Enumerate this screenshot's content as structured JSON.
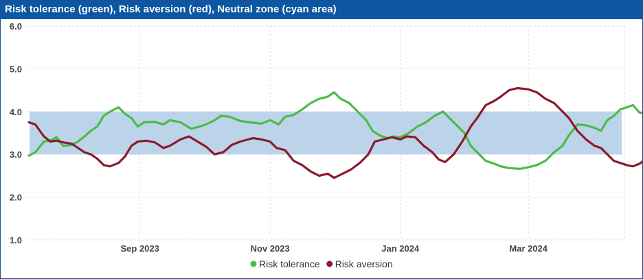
{
  "chart_data": {
    "type": "line",
    "title": "Risk tolerance (green), Risk aversion (red), Neutral zone (cyan area)",
    "xlabel": "",
    "ylabel": "",
    "ylim": [
      1.0,
      6.0
    ],
    "yticks": [
      "1.0",
      "2.0",
      "3.0",
      "4.0",
      "5.0",
      "6.0"
    ],
    "xlim": [
      "2023-07-10",
      "2024-04-15"
    ],
    "xticks": [
      {
        "date": "2023-09-01",
        "label": "Sep 2023"
      },
      {
        "date": "2023-11-01",
        "label": "Nov 2023"
      },
      {
        "date": "2024-01-01",
        "label": "Jan 2024"
      },
      {
        "date": "2024-03-01",
        "label": "Mar 2024"
      }
    ],
    "grid": true,
    "legend": "bottom-center",
    "band": {
      "low": 3.0,
      "high": 4.0,
      "color": "#bcd4ea"
    },
    "series": [
      {
        "name": "Risk tolerance",
        "color": "#4cbb47",
        "points": [
          [
            "2023-07-11",
            2.97
          ],
          [
            "2023-07-14",
            3.05
          ],
          [
            "2023-07-18",
            3.3
          ],
          [
            "2023-07-21",
            3.32
          ],
          [
            "2023-07-24",
            3.4
          ],
          [
            "2023-07-27",
            3.2
          ],
          [
            "2023-07-31",
            3.22
          ],
          [
            "2023-08-03",
            3.3
          ],
          [
            "2023-08-06",
            3.42
          ],
          [
            "2023-08-09",
            3.55
          ],
          [
            "2023-08-12",
            3.65
          ],
          [
            "2023-08-15",
            3.9
          ],
          [
            "2023-08-18",
            4.0
          ],
          [
            "2023-08-22",
            4.1
          ],
          [
            "2023-08-25",
            3.95
          ],
          [
            "2023-08-28",
            3.85
          ],
          [
            "2023-08-31",
            3.65
          ],
          [
            "2023-09-03",
            3.75
          ],
          [
            "2023-09-08",
            3.76
          ],
          [
            "2023-09-12",
            3.7
          ],
          [
            "2023-09-15",
            3.8
          ],
          [
            "2023-09-20",
            3.75
          ],
          [
            "2023-09-25",
            3.6
          ],
          [
            "2023-09-29",
            3.65
          ],
          [
            "2023-10-02",
            3.7
          ],
          [
            "2023-10-06",
            3.8
          ],
          [
            "2023-10-09",
            3.9
          ],
          [
            "2023-10-13",
            3.88
          ],
          [
            "2023-10-18",
            3.78
          ],
          [
            "2023-10-24",
            3.74
          ],
          [
            "2023-10-28",
            3.72
          ],
          [
            "2023-11-01",
            3.8
          ],
          [
            "2023-11-05",
            3.7
          ],
          [
            "2023-11-08",
            3.88
          ],
          [
            "2023-11-12",
            3.92
          ],
          [
            "2023-11-16",
            4.05
          ],
          [
            "2023-11-20",
            4.2
          ],
          [
            "2023-11-24",
            4.3
          ],
          [
            "2023-11-28",
            4.35
          ],
          [
            "2023-12-01",
            4.45
          ],
          [
            "2023-12-04",
            4.3
          ],
          [
            "2023-12-08",
            4.2
          ],
          [
            "2023-12-12",
            4.0
          ],
          [
            "2023-12-16",
            3.8
          ],
          [
            "2023-12-19",
            3.55
          ],
          [
            "2023-12-22",
            3.45
          ],
          [
            "2023-12-26",
            3.38
          ],
          [
            "2023-12-29",
            3.42
          ],
          [
            "2024-01-01",
            3.4
          ],
          [
            "2024-01-05",
            3.5
          ],
          [
            "2024-01-09",
            3.65
          ],
          [
            "2024-01-13",
            3.75
          ],
          [
            "2024-01-17",
            3.9
          ],
          [
            "2024-01-21",
            4.0
          ],
          [
            "2024-01-24",
            3.85
          ],
          [
            "2024-01-27",
            3.7
          ],
          [
            "2024-01-31",
            3.5
          ],
          [
            "2024-02-03",
            3.2
          ],
          [
            "2024-02-06",
            3.05
          ],
          [
            "2024-02-10",
            2.85
          ],
          [
            "2024-02-14",
            2.78
          ],
          [
            "2024-02-17",
            2.72
          ],
          [
            "2024-02-21",
            2.68
          ],
          [
            "2024-02-26",
            2.66
          ],
          [
            "2024-03-01",
            2.7
          ],
          [
            "2024-03-05",
            2.75
          ],
          [
            "2024-03-09",
            2.85
          ],
          [
            "2024-03-13",
            3.05
          ],
          [
            "2024-03-17",
            3.2
          ],
          [
            "2024-03-20",
            3.45
          ],
          [
            "2024-03-24",
            3.7
          ],
          [
            "2024-03-28",
            3.68
          ],
          [
            "2024-04-01",
            3.62
          ],
          [
            "2024-04-04",
            3.55
          ],
          [
            "2024-04-07",
            3.8
          ],
          [
            "2024-04-10",
            3.9
          ],
          [
            "2024-04-13",
            4.05
          ],
          [
            "2024-04-16",
            4.1
          ],
          [
            "2024-04-19",
            4.15
          ],
          [
            "2024-04-22",
            3.98
          ],
          [
            "2024-04-25",
            3.95
          ]
        ]
      },
      {
        "name": "Risk aversion",
        "color": "#8b1a2b",
        "points": [
          [
            "2023-07-11",
            3.75
          ],
          [
            "2023-07-14",
            3.7
          ],
          [
            "2023-07-18",
            3.42
          ],
          [
            "2023-07-21",
            3.3
          ],
          [
            "2023-07-24",
            3.32
          ],
          [
            "2023-07-27",
            3.28
          ],
          [
            "2023-07-31",
            3.25
          ],
          [
            "2023-08-03",
            3.15
          ],
          [
            "2023-08-06",
            3.05
          ],
          [
            "2023-08-09",
            3.0
          ],
          [
            "2023-08-12",
            2.9
          ],
          [
            "2023-08-15",
            2.75
          ],
          [
            "2023-08-18",
            2.72
          ],
          [
            "2023-08-22",
            2.8
          ],
          [
            "2023-08-25",
            2.95
          ],
          [
            "2023-08-28",
            3.2
          ],
          [
            "2023-08-31",
            3.3
          ],
          [
            "2023-09-04",
            3.32
          ],
          [
            "2023-09-08",
            3.28
          ],
          [
            "2023-09-12",
            3.15
          ],
          [
            "2023-09-15",
            3.2
          ],
          [
            "2023-09-20",
            3.35
          ],
          [
            "2023-09-24",
            3.42
          ],
          [
            "2023-09-28",
            3.3
          ],
          [
            "2023-10-02",
            3.18
          ],
          [
            "2023-10-06",
            3.0
          ],
          [
            "2023-10-10",
            3.05
          ],
          [
            "2023-10-14",
            3.22
          ],
          [
            "2023-10-18",
            3.3
          ],
          [
            "2023-10-24",
            3.38
          ],
          [
            "2023-10-28",
            3.35
          ],
          [
            "2023-11-01",
            3.3
          ],
          [
            "2023-11-04",
            3.15
          ],
          [
            "2023-11-08",
            3.1
          ],
          [
            "2023-11-12",
            2.85
          ],
          [
            "2023-11-16",
            2.75
          ],
          [
            "2023-11-20",
            2.6
          ],
          [
            "2023-11-24",
            2.5
          ],
          [
            "2023-11-28",
            2.55
          ],
          [
            "2023-12-01",
            2.45
          ],
          [
            "2023-12-05",
            2.55
          ],
          [
            "2023-12-09",
            2.65
          ],
          [
            "2023-12-13",
            2.8
          ],
          [
            "2023-12-17",
            3.0
          ],
          [
            "2023-12-20",
            3.3
          ],
          [
            "2023-12-24",
            3.35
          ],
          [
            "2023-12-28",
            3.4
          ],
          [
            "2024-01-01",
            3.35
          ],
          [
            "2024-01-04",
            3.42
          ],
          [
            "2024-01-08",
            3.4
          ],
          [
            "2024-01-12",
            3.2
          ],
          [
            "2024-01-16",
            3.05
          ],
          [
            "2024-01-19",
            2.88
          ],
          [
            "2024-01-22",
            2.82
          ],
          [
            "2024-01-26",
            3.0
          ],
          [
            "2024-01-30",
            3.3
          ],
          [
            "2024-02-03",
            3.65
          ],
          [
            "2024-02-06",
            3.85
          ],
          [
            "2024-02-10",
            4.15
          ],
          [
            "2024-02-14",
            4.25
          ],
          [
            "2024-02-17",
            4.35
          ],
          [
            "2024-02-21",
            4.5
          ],
          [
            "2024-02-25",
            4.55
          ],
          [
            "2024-03-01",
            4.52
          ],
          [
            "2024-03-05",
            4.45
          ],
          [
            "2024-03-09",
            4.3
          ],
          [
            "2024-03-13",
            4.2
          ],
          [
            "2024-03-17",
            4.0
          ],
          [
            "2024-03-20",
            3.85
          ],
          [
            "2024-03-24",
            3.55
          ],
          [
            "2024-03-28",
            3.35
          ],
          [
            "2024-04-01",
            3.2
          ],
          [
            "2024-04-04",
            3.15
          ],
          [
            "2024-04-07",
            3.0
          ],
          [
            "2024-04-10",
            2.85
          ],
          [
            "2024-04-13",
            2.8
          ],
          [
            "2024-04-16",
            2.75
          ],
          [
            "2024-04-19",
            2.72
          ],
          [
            "2024-04-22",
            2.78
          ],
          [
            "2024-04-25",
            2.88
          ]
        ]
      }
    ]
  }
}
